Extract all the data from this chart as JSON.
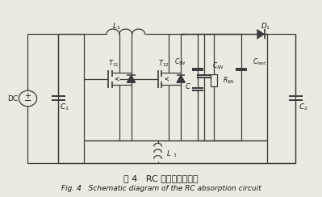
{
  "title_chinese": "图 4   RC 吸收电路原理图",
  "title_english": "Fig. 4   Schematic diagram of the RC absorption circuit",
  "bg_color": "#ede9e0",
  "line_color": "#3a3a3a",
  "text_color": "#1a1a1a"
}
